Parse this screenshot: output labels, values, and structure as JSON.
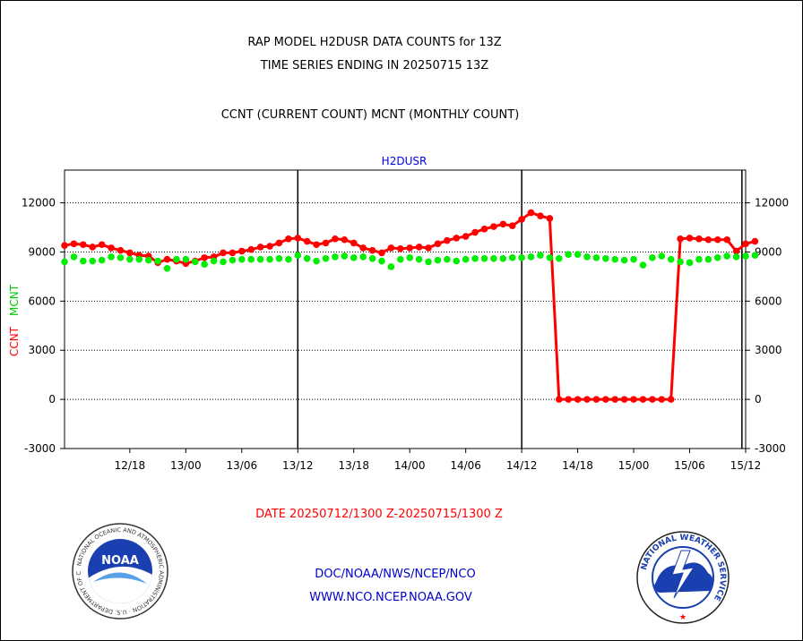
{
  "header": {
    "title_line1": "RAP MODEL H2DUSR DATA COUNTS for 13Z",
    "title_line2": "TIME SERIES ENDING IN 20250715 13Z",
    "subtitle": "CCNT (CURRENT COUNT) MCNT (MONTHLY COUNT)"
  },
  "footer": {
    "date_range": "DATE 20250712/1300 Z-20250715/1300 Z",
    "org_path": "DOC/NOAA/NWS/NCEP/NCO",
    "website": "WWW.NCO.NCEP.NOAA.GOV"
  },
  "logos": {
    "left_label": "NOAA",
    "left_ring": "NATIONAL OCEANIC AND ATMOSPHERIC ADMINISTRATION · U.S. DEPARTMENT OF COMMERCE",
    "right_ring": "NATIONAL WEATHER SERVICE"
  },
  "chart_data": {
    "type": "line",
    "title": "H2DUSR",
    "ylabel_ccnt": "CCNT",
    "ylabel_mcnt": "MCNT",
    "ylim": [
      -3000,
      14000
    ],
    "yticks": [
      -3000,
      0,
      3000,
      6000,
      9000,
      12000
    ],
    "grid": true,
    "x_hours_range": [
      -13,
      60
    ],
    "xticks": [
      {
        "h": -6,
        "label": "12/18"
      },
      {
        "h": 0,
        "label": "13/00"
      },
      {
        "h": 6,
        "label": "13/06"
      },
      {
        "h": 12,
        "label": "13/12"
      },
      {
        "h": 18,
        "label": "13/18"
      },
      {
        "h": 24,
        "label": "14/00"
      },
      {
        "h": 30,
        "label": "14/06"
      },
      {
        "h": 36,
        "label": "14/12"
      },
      {
        "h": 42,
        "label": "14/18"
      },
      {
        "h": 48,
        "label": "15/00"
      },
      {
        "h": 54,
        "label": "15/06"
      },
      {
        "h": 60,
        "label": "15/12"
      }
    ],
    "vlines_hours": [
      12,
      36,
      59.6
    ],
    "series": [
      {
        "name": "CCNT",
        "color": "#ff0000",
        "values": [
          9400,
          9500,
          9450,
          9300,
          9450,
          9250,
          9100,
          8950,
          8800,
          8750,
          8350,
          8550,
          8450,
          8300,
          8450,
          8650,
          8700,
          8950,
          8950,
          9050,
          9150,
          9300,
          9350,
          9550,
          9800,
          9850,
          9650,
          9450,
          9550,
          9800,
          9750,
          9550,
          9250,
          9100,
          8950,
          9250,
          9200,
          9250,
          9300,
          9250,
          9500,
          9700,
          9850,
          9950,
          10200,
          10400,
          10550,
          10700,
          10600,
          11000,
          11400,
          11200,
          11050,
          0,
          0,
          0,
          0,
          0,
          0,
          0,
          0,
          0,
          0,
          0,
          0,
          0,
          9800,
          9850,
          9800,
          9750,
          9750,
          9750,
          9050,
          9500,
          9650
        ]
      },
      {
        "name": "MCNT",
        "color": "#00ee00",
        "values": [
          8400,
          8700,
          8450,
          8450,
          8500,
          8700,
          8650,
          8550,
          8550,
          8500,
          8450,
          8000,
          8550,
          8550,
          8400,
          8250,
          8450,
          8400,
          8500,
          8550,
          8550,
          8550,
          8550,
          8600,
          8550,
          8800,
          8600,
          8450,
          8600,
          8700,
          8750,
          8650,
          8700,
          8600,
          8450,
          8100,
          8550,
          8650,
          8550,
          8400,
          8500,
          8550,
          8450,
          8550,
          8600,
          8600,
          8600,
          8600,
          8650,
          8650,
          8700,
          8800,
          8650,
          8600,
          8850,
          8850,
          8700,
          8650,
          8600,
          8550,
          8500,
          8550,
          8200,
          8650,
          8750,
          8550,
          8400,
          8350,
          8550,
          8550,
          8650,
          8750,
          8700,
          8750,
          8800
        ]
      }
    ]
  }
}
